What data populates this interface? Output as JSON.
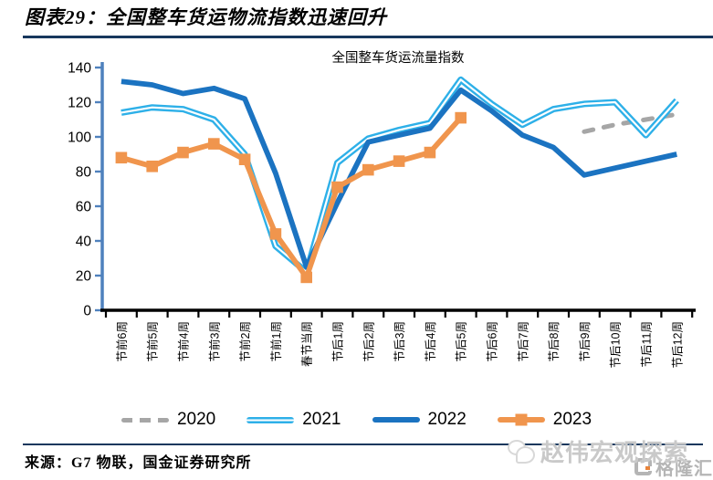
{
  "header": {
    "title": "图表29：全国整车货运物流指数迅速回升"
  },
  "chart_data": {
    "type": "line",
    "title": "全国整车货运流量指数",
    "categories": [
      "节前6周",
      "节前5周",
      "节前4周",
      "节前3周",
      "节前2周",
      "节前1周",
      "春节当周",
      "节后1周",
      "节后2周",
      "节后3周",
      "节后4周",
      "节后5周",
      "节后6周",
      "节后7周",
      "节后8周",
      "节后9周",
      "节后10周",
      "节后11周",
      "节后12周"
    ],
    "ylim": [
      0,
      140
    ],
    "ytick_step": 20,
    "grid": false,
    "legend_position": "bottom",
    "axis_color": "#4f81bd",
    "series": [
      {
        "name": "2020",
        "color": "#a6a6a6",
        "style": "dashed",
        "values": [
          null,
          null,
          null,
          null,
          null,
          null,
          null,
          null,
          null,
          null,
          null,
          null,
          null,
          null,
          null,
          103,
          107,
          110,
          113
        ]
      },
      {
        "name": "2021",
        "color": "#2eb0e8",
        "style": "double",
        "values": [
          114,
          117,
          116,
          110,
          90,
          37,
          22,
          85,
          99,
          104,
          108,
          133,
          119,
          107,
          116,
          119,
          120,
          101,
          121
        ]
      },
      {
        "name": "2022",
        "color": "#1b73c1",
        "style": "solid",
        "values": [
          132,
          130,
          125,
          128,
          122,
          79,
          25,
          62,
          97,
          101,
          105,
          127,
          115,
          101,
          94,
          78,
          82,
          86,
          90
        ]
      },
      {
        "name": "2023",
        "color": "#f0954d",
        "style": "solid",
        "marker": "square",
        "values": [
          88,
          83,
          91,
          96,
          87,
          44,
          19,
          71,
          81,
          86,
          91,
          111,
          null,
          null,
          null,
          null,
          null,
          null,
          null
        ]
      }
    ]
  },
  "footer": {
    "source": "来源：G7 物联，国金证券研究所"
  },
  "watermark": {
    "text": "赵伟宏观探索",
    "logo_text": "格隆汇"
  }
}
